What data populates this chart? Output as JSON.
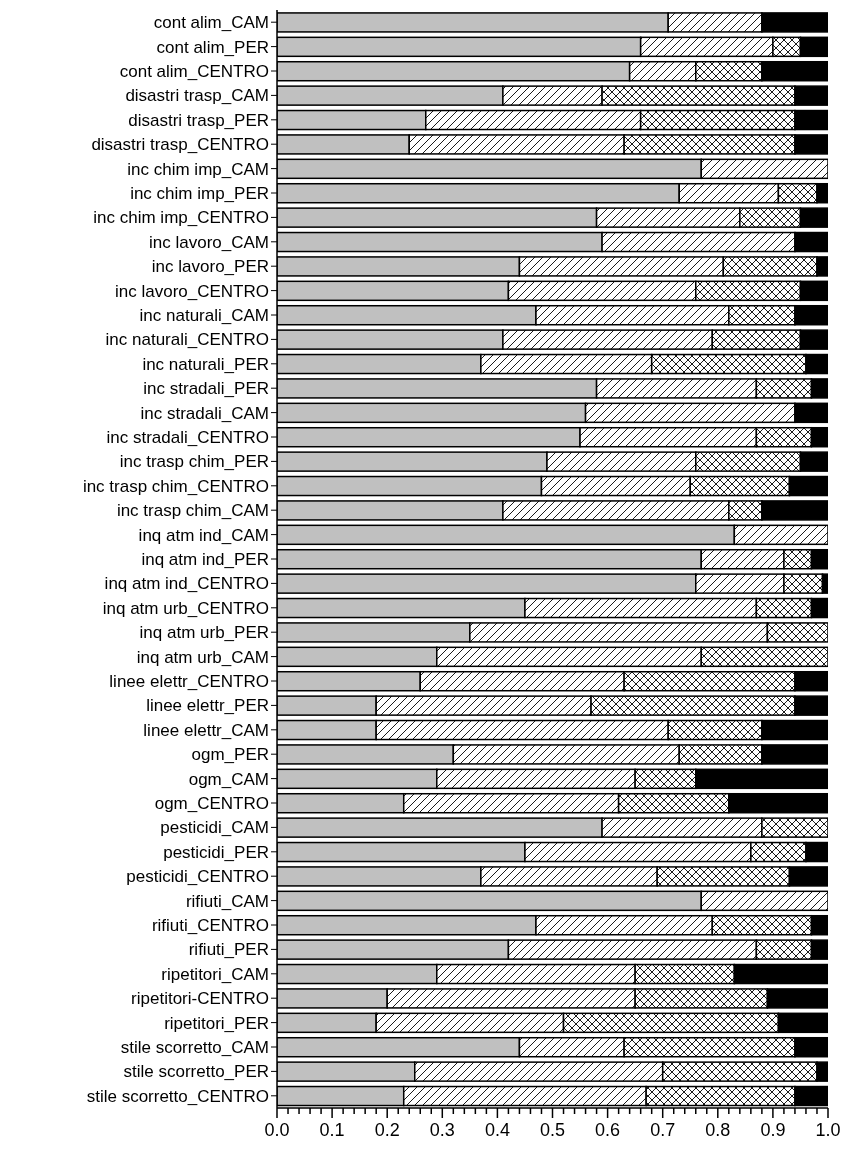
{
  "chart_data": {
    "type": "bar",
    "orientation": "horizontal",
    "stacked": true,
    "categories": [
      "cont alim_CAM",
      "cont alim_PER",
      "cont alim_CENTRO",
      "disastri trasp_CAM",
      "disastri trasp_PER",
      "disastri trasp_CENTRO",
      "inc chim imp_CAM",
      "inc chim imp_PER",
      "inc chim imp_CENTRO",
      "inc lavoro_CAM",
      "inc lavoro_PER",
      "inc lavoro_CENTRO",
      "inc naturali_CAM",
      "inc naturali_CENTRO",
      "inc naturali_PER",
      "inc stradali_PER",
      "inc stradali_CAM",
      "inc stradali_CENTRO",
      "inc trasp chim_PER",
      "inc trasp chim_CENTRO",
      "inc trasp chim_CAM",
      "inq atm ind_CAM",
      "inq atm ind_PER",
      "inq atm ind_CENTRO",
      "inq atm urb_CENTRO",
      "inq atm urb_PER",
      "inq atm urb_CAM",
      "linee elettr_CENTRO",
      "linee elettr_PER",
      "linee elettr_CAM",
      "ogm_PER",
      "ogm_CAM",
      "ogm_CENTRO",
      "pesticidi_CAM",
      "pesticidi_PER",
      "pesticidi_CENTRO",
      "rifiuti_CAM",
      "rifiuti_CENTRO",
      "rifiuti_PER",
      "ripetitori_CAM",
      "ripetitori-CENTRO",
      "ripetitori_PER",
      "stile scorretto_CAM",
      "stile scorretto_PER",
      "stile scorretto_CENTRO"
    ],
    "series": [
      {
        "color": "#c0c0c0",
        "values": [
          0.71,
          0.66,
          0.64,
          0.41,
          0.27,
          0.24,
          0.77,
          0.73,
          0.58,
          0.59,
          0.44,
          0.42,
          0.47,
          0.41,
          0.37,
          0.58,
          0.56,
          0.55,
          0.49,
          0.48,
          0.41,
          0.83,
          0.77,
          0.76,
          0.45,
          0.35,
          0.29,
          0.26,
          0.18,
          0.18,
          0.32,
          0.29,
          0.23,
          0.59,
          0.45,
          0.37,
          0.77,
          0.47,
          0.42,
          0.29,
          0.2,
          0.18,
          0.44,
          0.25,
          0.23
        ]
      },
      {
        "color": "#ffffff",
        "values": [
          0.17,
          0.24,
          0.12,
          0.18,
          0.39,
          0.39,
          0.23,
          0.18,
          0.26,
          0.35,
          0.37,
          0.34,
          0.35,
          0.38,
          0.31,
          0.29,
          0.38,
          0.32,
          0.27,
          0.27,
          0.41,
          0.17,
          0.15,
          0.16,
          0.42,
          0.54,
          0.48,
          0.37,
          0.39,
          0.53,
          0.41,
          0.36,
          0.39,
          0.29,
          0.41,
          0.32,
          0.23,
          0.32,
          0.45,
          0.36,
          0.45,
          0.34,
          0.19,
          0.45,
          0.44
        ]
      },
      {
        "color": "#ffffff",
        "values": [
          0,
          0.05,
          0.12,
          0.35,
          0.28,
          0.31,
          0,
          0.07,
          0.11,
          0,
          0.17,
          0.19,
          0.12,
          0.16,
          0.28,
          0.1,
          0,
          0.1,
          0.19,
          0.18,
          0.06,
          0,
          0.05,
          0.07,
          0.1,
          0.11,
          0.23,
          0.31,
          0.37,
          0.17,
          0.15,
          0.11,
          0.2,
          0.12,
          0.1,
          0.24,
          0,
          0.18,
          0.1,
          0.18,
          0.24,
          0.39,
          0.31,
          0.28,
          0.27
        ]
      },
      {
        "color": "#000000",
        "values": [
          0.12,
          0.05,
          0.12,
          0.06,
          0.06,
          0.06,
          0,
          0.02,
          0.05,
          0.06,
          0.02,
          0.05,
          0.06,
          0.05,
          0.04,
          0.03,
          0.06,
          0.03,
          0.05,
          0.07,
          0.12,
          0,
          0.03,
          0.01,
          0.03,
          0,
          0,
          0.06,
          0.06,
          0.12,
          0.12,
          0.24,
          0.18,
          0,
          0.04,
          0.07,
          0,
          0.03,
          0.03,
          0.17,
          0.11,
          0.09,
          0.06,
          0.02,
          0.06
        ]
      }
    ],
    "xlim": [
      0,
      1
    ],
    "xticks": [
      {
        "value": 0,
        "label": "0.0"
      },
      {
        "value": 0.02,
        "label": null
      },
      {
        "value": 0.04,
        "label": null
      },
      {
        "value": 0.06,
        "label": null
      },
      {
        "value": 0.08,
        "label": null
      },
      {
        "value": 0.1,
        "label": "0.1"
      },
      {
        "value": 0.12,
        "label": null
      },
      {
        "value": 0.14,
        "label": null
      },
      {
        "value": 0.16,
        "label": null
      },
      {
        "value": 0.18,
        "label": null
      },
      {
        "value": 0.2,
        "label": "0.2"
      },
      {
        "value": 0.22,
        "label": null
      },
      {
        "value": 0.24,
        "label": null
      },
      {
        "value": 0.26,
        "label": null
      },
      {
        "value": 0.28,
        "label": null
      },
      {
        "value": 0.3,
        "label": "0.3"
      },
      {
        "value": 0.32,
        "label": null
      },
      {
        "value": 0.34,
        "label": null
      },
      {
        "value": 0.36,
        "label": null
      },
      {
        "value": 0.38,
        "label": null
      },
      {
        "value": 0.4,
        "label": "0.4"
      },
      {
        "value": 0.42,
        "label": null
      },
      {
        "value": 0.44,
        "label": null
      },
      {
        "value": 0.46,
        "label": null
      },
      {
        "value": 0.48,
        "label": null
      },
      {
        "value": 0.5,
        "label": "0.5"
      },
      {
        "value": 0.52,
        "label": null
      },
      {
        "value": 0.54,
        "label": null
      },
      {
        "value": 0.56,
        "label": null
      },
      {
        "value": 0.58,
        "label": null
      },
      {
        "value": 0.6,
        "label": "0.6"
      },
      {
        "value": 0.62,
        "label": null
      },
      {
        "value": 0.64,
        "label": null
      },
      {
        "value": 0.66,
        "label": null
      },
      {
        "value": 0.68,
        "label": null
      },
      {
        "value": 0.7,
        "label": "0.7"
      },
      {
        "value": 0.72,
        "label": null
      },
      {
        "value": 0.74,
        "label": null
      },
      {
        "value": 0.76,
        "label": null
      },
      {
        "value": 0.78,
        "label": null
      },
      {
        "value": 0.8,
        "label": "0.8"
      },
      {
        "value": 0.82,
        "label": null
      },
      {
        "value": 0.84,
        "label": null
      },
      {
        "value": 0.86,
        "label": null
      },
      {
        "value": 0.88,
        "label": null
      },
      {
        "value": 0.9,
        "label": "0.9"
      },
      {
        "value": 0.92,
        "label": null
      },
      {
        "value": 0.94,
        "label": null
      },
      {
        "value": 0.96,
        "label": null
      },
      {
        "value": 0.98,
        "label": null
      },
      {
        "value": 1,
        "label": "1.0"
      }
    ]
  }
}
